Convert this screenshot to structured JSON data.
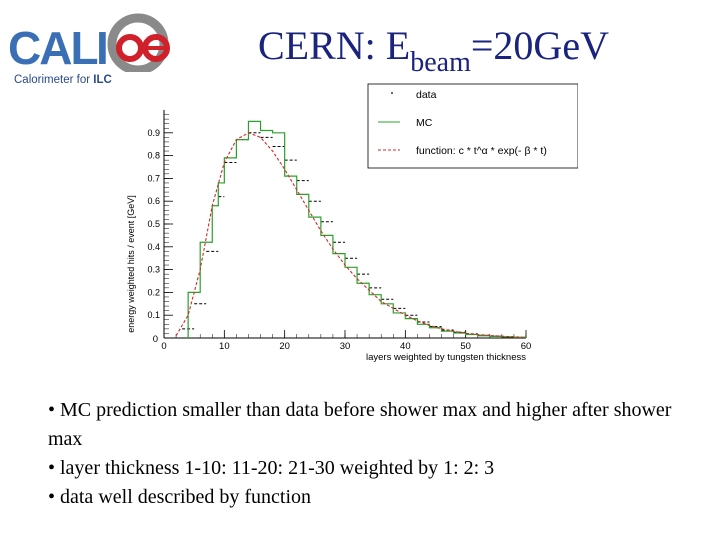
{
  "logo": {
    "wordmark": "CALICE",
    "subtitle_prefix": "Calorimeter for ",
    "subtitle_suffix": "ILC",
    "colors": {
      "blue": "#3a6fb5",
      "red": "#d0202a",
      "gray": "#8a8a8a"
    }
  },
  "slide": {
    "title_main": "CERN: E",
    "title_sub": "beam",
    "title_tail": "=20GeV",
    "bullets": [
      "• MC prediction smaller than data before shower max and higher after shower max",
      "• layer thickness 1-10: 11-20: 21-30 weighted by 1: 2: 3",
      "• data well described by function"
    ]
  },
  "chart_data": {
    "type": "line",
    "xlabel": "layers weighted by tungsten thickness",
    "ylabel": "energy weighted hits / event [GeV]",
    "xlim": [
      0,
      60
    ],
    "ylim": [
      0,
      1.0
    ],
    "x_ticks": [
      0,
      10,
      20,
      30,
      40,
      50,
      60
    ],
    "y_ticks": [
      0.1,
      0.2,
      0.3,
      0.4,
      0.5,
      0.6,
      0.7,
      0.8,
      0.9
    ],
    "y_origin_label": "0",
    "legend": {
      "position": "top-right",
      "entries": [
        "data",
        "MC",
        "function: c * t^α * exp(- β * t)"
      ]
    },
    "series": [
      {
        "name": "data",
        "style": "black-dashes",
        "color": "#000000",
        "bin_edges": [
          3,
          5,
          7,
          9,
          10,
          12,
          14,
          16,
          18,
          20,
          22,
          24,
          26,
          28,
          30,
          32,
          34,
          36,
          38,
          40,
          42,
          44,
          46,
          48,
          50,
          52,
          54,
          56,
          58,
          60
        ],
        "values": [
          0.04,
          0.15,
          0.38,
          0.62,
          0.77,
          0.87,
          0.9,
          0.88,
          0.84,
          0.78,
          0.69,
          0.6,
          0.51,
          0.42,
          0.35,
          0.28,
          0.22,
          0.17,
          0.13,
          0.1,
          0.07,
          0.05,
          0.035,
          0.025,
          0.018,
          0.012,
          0.008,
          0.005,
          0.003
        ]
      },
      {
        "name": "MC",
        "style": "green-steps",
        "color": "#2ca02c",
        "bin_edges": [
          4,
          6,
          8,
          9,
          10,
          12,
          14,
          16,
          18,
          20,
          22,
          24,
          26,
          28,
          30,
          32,
          34,
          36,
          38,
          40,
          42,
          44,
          46,
          48,
          50,
          52,
          54,
          56,
          58,
          60
        ],
        "values": [
          0.2,
          0.42,
          0.58,
          0.68,
          0.79,
          0.87,
          0.95,
          0.91,
          0.9,
          0.71,
          0.63,
          0.53,
          0.45,
          0.37,
          0.31,
          0.24,
          0.19,
          0.15,
          0.11,
          0.085,
          0.06,
          0.045,
          0.03,
          0.022,
          0.015,
          0.01,
          0.007,
          0.005,
          0.003
        ]
      },
      {
        "name": "function",
        "style": "red-dashed",
        "color": "#d62728",
        "x": [
          2,
          4,
          6,
          8,
          10,
          12,
          14,
          16,
          18,
          20,
          22,
          24,
          26,
          28,
          30,
          32,
          34,
          36,
          38,
          40,
          42,
          44,
          46,
          48,
          50,
          52,
          54,
          56,
          58,
          60
        ],
        "y": [
          0.01,
          0.1,
          0.3,
          0.58,
          0.77,
          0.87,
          0.9,
          0.88,
          0.82,
          0.74,
          0.65,
          0.56,
          0.47,
          0.39,
          0.32,
          0.26,
          0.21,
          0.16,
          0.13,
          0.1,
          0.075,
          0.055,
          0.04,
          0.03,
          0.021,
          0.015,
          0.011,
          0.008,
          0.005,
          0.003
        ]
      }
    ]
  }
}
